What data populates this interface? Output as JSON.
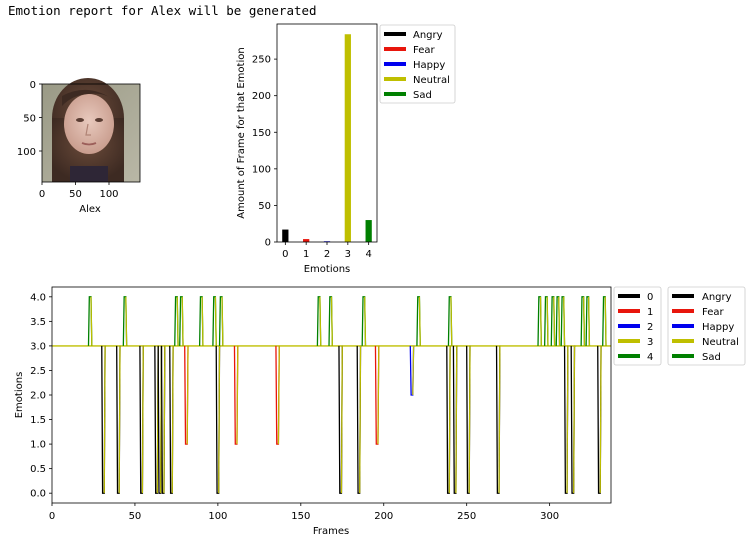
{
  "report": {
    "title": "Emotion report for Alex will be generated"
  },
  "colors": {
    "Angry": "#000000",
    "Fear": "#e8160c",
    "Happy": "#0000ee",
    "Neutral": "#bfbf00",
    "Sad": "#008000"
  },
  "thumbnail": {
    "xlabel": "Alex",
    "x_ticks": [
      "0",
      "50",
      "100"
    ],
    "y_ticks": [
      "0",
      "50",
      "100"
    ],
    "size": [
      145,
      145
    ]
  },
  "chart_data": [
    {
      "type": "bar",
      "title": "",
      "xlabel": "Emotions",
      "ylabel": "Amount of Frame for that Emotion",
      "categories": [
        "0",
        "1",
        "2",
        "3",
        "4"
      ],
      "series_names": [
        "Angry",
        "Fear",
        "Happy",
        "Neutral",
        "Sad"
      ],
      "values": [
        17,
        4,
        1,
        284,
        30
      ],
      "ylim": [
        0,
        298
      ],
      "y_ticks": [
        0,
        50,
        100,
        150,
        200,
        250
      ],
      "legend": [
        "Angry",
        "Fear",
        "Happy",
        "Neutral",
        "Sad"
      ],
      "legend_position": "outside-right"
    },
    {
      "type": "line",
      "title": "",
      "xlabel": "Frames",
      "ylabel": "Emotions",
      "xlim": [
        0,
        337
      ],
      "ylim": [
        -0.2,
        4.2
      ],
      "x_ticks": [
        0,
        50,
        100,
        150,
        200,
        250,
        300
      ],
      "y_ticks": [
        "0.0",
        "0.5",
        "1.0",
        "1.5",
        "2.0",
        "2.5",
        "3.0",
        "3.5",
        "4.0"
      ],
      "baseline": 3,
      "legend_numeric": [
        "0",
        "1",
        "2",
        "3",
        "4"
      ],
      "legend_names": [
        "Angry",
        "Fear",
        "Happy",
        "Neutral",
        "Sad"
      ],
      "legend_position": "outside-right",
      "excursions": [
        {
          "x": 23,
          "y": 4
        },
        {
          "x": 31,
          "y": 0
        },
        {
          "x": 40,
          "y": 0
        },
        {
          "x": 44,
          "y": 4
        },
        {
          "x": 54,
          "y": 0
        },
        {
          "x": 63,
          "y": 0
        },
        {
          "x": 65,
          "y": 0
        },
        {
          "x": 67,
          "y": 0
        },
        {
          "x": 72,
          "y": 0
        },
        {
          "x": 75,
          "y": 4
        },
        {
          "x": 78,
          "y": 4
        },
        {
          "x": 81,
          "y": 1
        },
        {
          "x": 90,
          "y": 4
        },
        {
          "x": 98,
          "y": 4
        },
        {
          "x": 100,
          "y": 0
        },
        {
          "x": 102,
          "y": 4
        },
        {
          "x": 111,
          "y": 1
        },
        {
          "x": 136,
          "y": 1
        },
        {
          "x": 161,
          "y": 4
        },
        {
          "x": 168,
          "y": 4
        },
        {
          "x": 174,
          "y": 0
        },
        {
          "x": 185,
          "y": 0
        },
        {
          "x": 188,
          "y": 4
        },
        {
          "x": 196,
          "y": 1
        },
        {
          "x": 217,
          "y": 2
        },
        {
          "x": 221,
          "y": 4
        },
        {
          "x": 239,
          "y": 0
        },
        {
          "x": 240,
          "y": 4
        },
        {
          "x": 243,
          "y": 0
        },
        {
          "x": 251,
          "y": 0
        },
        {
          "x": 269,
          "y": 0
        },
        {
          "x": 294,
          "y": 4
        },
        {
          "x": 298,
          "y": 4
        },
        {
          "x": 302,
          "y": 4
        },
        {
          "x": 305,
          "y": 4
        },
        {
          "x": 308,
          "y": 4
        },
        {
          "x": 310,
          "y": 0
        },
        {
          "x": 314,
          "y": 0
        },
        {
          "x": 320,
          "y": 4
        },
        {
          "x": 323,
          "y": 4
        },
        {
          "x": 330,
          "y": 0
        },
        {
          "x": 333,
          "y": 4
        }
      ]
    }
  ]
}
